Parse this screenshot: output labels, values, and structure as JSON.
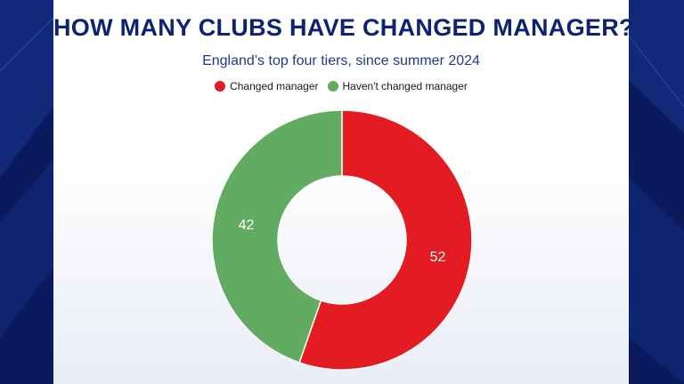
{
  "chart_data": {
    "type": "pie",
    "title": "HOW MANY CLUBS HAVE CHANGED MANAGER?",
    "subtitle": "England’s top four tiers, since summer 2024",
    "categories": [
      "Changed manager",
      "Haven't changed manager"
    ],
    "values": [
      52,
      42
    ],
    "colors": [
      "#e31b23",
      "#62ab62"
    ],
    "donut": true,
    "legend_position": "top-center"
  }
}
